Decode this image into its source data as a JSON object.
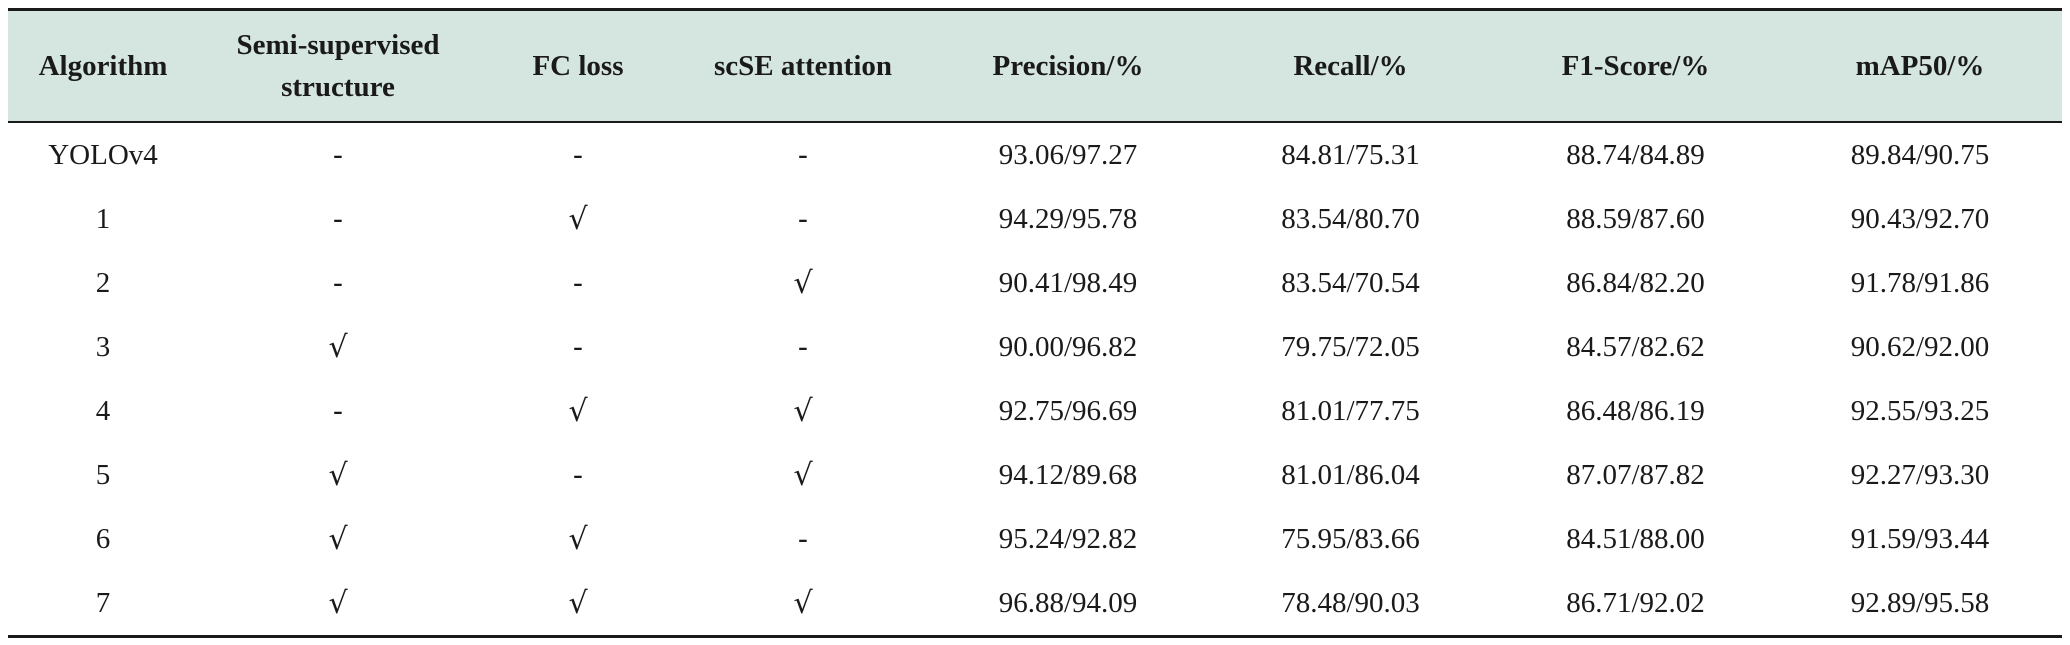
{
  "table": {
    "columns": [
      "Algorithm",
      "Semi-supervised structure",
      "FC loss",
      "scSE attention",
      "Precision/%",
      "Recall/%",
      "F1-Score/%",
      "mAP50/%"
    ],
    "rows": [
      [
        "YOLOv4",
        "-",
        "-",
        "-",
        "93.06/97.27",
        "84.81/75.31",
        "88.74/84.89",
        "89.84/90.75"
      ],
      [
        "1",
        "-",
        "√",
        "-",
        "94.29/95.78",
        "83.54/80.70",
        "88.59/87.60",
        "90.43/92.70"
      ],
      [
        "2",
        "-",
        "-",
        "√",
        "90.41/98.49",
        "83.54/70.54",
        "86.84/82.20",
        "91.78/91.86"
      ],
      [
        "3",
        "√",
        "-",
        "-",
        "90.00/96.82",
        "79.75/72.05",
        "84.57/82.62",
        "90.62/92.00"
      ],
      [
        "4",
        "-",
        "√",
        "√",
        "92.75/96.69",
        "81.01/77.75",
        "86.48/86.19",
        "92.55/93.25"
      ],
      [
        "5",
        "√",
        "-",
        "√",
        "94.12/89.68",
        "81.01/86.04",
        "87.07/87.82",
        "92.27/93.30"
      ],
      [
        "6",
        "√",
        "√",
        "-",
        "95.24/92.82",
        "75.95/83.66",
        "84.51/88.00",
        "91.59/93.44"
      ],
      [
        "7",
        "√",
        "√",
        "√",
        "96.88/94.09",
        "78.48/90.03",
        "86.71/92.02",
        "92.89/95.58"
      ]
    ]
  },
  "colors": {
    "header_background": "#d5e5e0",
    "rule_color": "#1a1a1a"
  }
}
